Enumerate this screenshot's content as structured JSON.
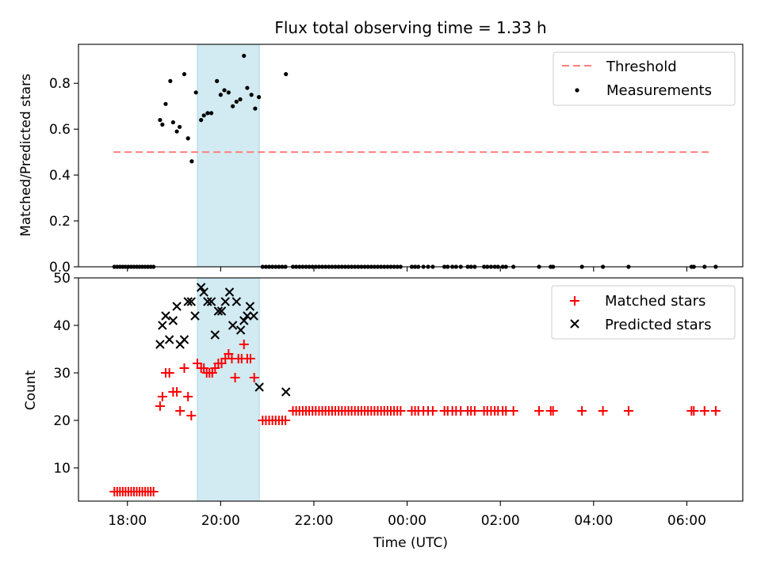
{
  "chart_data": [
    {
      "type": "scatter",
      "title": "Flux total observing time = 1.33 h",
      "ylabel": "Matched/Predicted stars",
      "xlabel": "",
      "xlim": [
        16.95,
        31.2
      ],
      "ylim": [
        0,
        0.97
      ],
      "yticks": [
        0.0,
        0.2,
        0.4,
        0.6,
        0.8
      ],
      "ytick_labels": [
        "0.0",
        "0.2",
        "0.4",
        "0.6",
        "0.8"
      ],
      "legend_position": "top-right",
      "shaded_region": {
        "x": [
          19.5,
          20.83
        ],
        "color": "#add8e6"
      },
      "threshold": {
        "name": "Threshold",
        "y": 0.5,
        "x": [
          17.7,
          30.55
        ],
        "color": "#ff7f7f"
      },
      "series": [
        {
          "name": "Measurements",
          "color": "#000000",
          "points": [
            [
              17.72,
              0
            ],
            [
              17.78,
              0
            ],
            [
              17.84,
              0
            ],
            [
              17.9,
              0
            ],
            [
              17.96,
              0
            ],
            [
              18.02,
              0
            ],
            [
              18.08,
              0
            ],
            [
              18.14,
              0
            ],
            [
              18.2,
              0
            ],
            [
              18.26,
              0
            ],
            [
              18.32,
              0
            ],
            [
              18.38,
              0
            ],
            [
              18.44,
              0
            ],
            [
              18.5,
              0
            ],
            [
              18.56,
              0
            ],
            [
              18.7,
              0.64
            ],
            [
              18.75,
              0.62
            ],
            [
              18.82,
              0.71
            ],
            [
              18.92,
              0.81
            ],
            [
              18.98,
              0.63
            ],
            [
              19.06,
              0.59
            ],
            [
              19.12,
              0.61
            ],
            [
              19.22,
              0.84
            ],
            [
              19.3,
              0.56
            ],
            [
              19.38,
              0.46
            ],
            [
              19.47,
              0.76
            ],
            [
              19.58,
              0.64
            ],
            [
              19.64,
              0.66
            ],
            [
              19.72,
              0.67
            ],
            [
              19.8,
              0.67
            ],
            [
              19.92,
              0.81
            ],
            [
              20.0,
              0.75
            ],
            [
              20.08,
              0.77
            ],
            [
              20.17,
              0.76
            ],
            [
              20.26,
              0.7
            ],
            [
              20.34,
              0.72
            ],
            [
              20.42,
              0.73
            ],
            [
              20.5,
              0.92
            ],
            [
              20.57,
              0.78
            ],
            [
              20.66,
              0.75
            ],
            [
              20.74,
              0.69
            ],
            [
              20.82,
              0.74
            ],
            [
              21.4,
              0.84
            ],
            [
              20.9,
              0
            ],
            [
              20.97,
              0
            ],
            [
              21.04,
              0
            ],
            [
              21.11,
              0
            ],
            [
              21.18,
              0
            ],
            [
              21.25,
              0
            ],
            [
              21.32,
              0
            ],
            [
              21.39,
              0
            ],
            [
              21.55,
              0
            ],
            [
              21.62,
              0
            ],
            [
              21.69,
              0
            ],
            [
              21.76,
              0
            ],
            [
              21.83,
              0
            ],
            [
              21.9,
              0
            ],
            [
              21.97,
              0
            ],
            [
              22.04,
              0
            ],
            [
              22.11,
              0
            ],
            [
              22.18,
              0
            ],
            [
              22.25,
              0
            ],
            [
              22.32,
              0
            ],
            [
              22.39,
              0
            ],
            [
              22.46,
              0
            ],
            [
              22.53,
              0
            ],
            [
              22.6,
              0
            ],
            [
              22.67,
              0
            ],
            [
              22.74,
              0
            ],
            [
              22.81,
              0
            ],
            [
              22.88,
              0
            ],
            [
              22.95,
              0
            ],
            [
              23.02,
              0
            ],
            [
              23.09,
              0
            ],
            [
              23.16,
              0
            ],
            [
              23.23,
              0
            ],
            [
              23.3,
              0
            ],
            [
              23.37,
              0
            ],
            [
              23.44,
              0
            ],
            [
              23.51,
              0
            ],
            [
              23.58,
              0
            ],
            [
              23.65,
              0
            ],
            [
              23.72,
              0
            ],
            [
              23.79,
              0
            ],
            [
              23.86,
              0
            ],
            [
              24.1,
              0
            ],
            [
              24.17,
              0
            ],
            [
              24.24,
              0
            ],
            [
              24.35,
              0
            ],
            [
              24.45,
              0
            ],
            [
              24.55,
              0
            ],
            [
              24.8,
              0
            ],
            [
              24.87,
              0
            ],
            [
              24.97,
              0
            ],
            [
              25.05,
              0
            ],
            [
              25.15,
              0
            ],
            [
              25.3,
              0
            ],
            [
              25.37,
              0
            ],
            [
              25.45,
              0
            ],
            [
              25.65,
              0
            ],
            [
              25.72,
              0
            ],
            [
              25.8,
              0
            ],
            [
              25.88,
              0
            ],
            [
              25.95,
              0
            ],
            [
              26.05,
              0
            ],
            [
              26.12,
              0
            ],
            [
              26.28,
              0
            ],
            [
              26.83,
              0
            ],
            [
              27.08,
              0
            ],
            [
              27.13,
              0
            ],
            [
              27.75,
              0
            ],
            [
              28.2,
              0
            ],
            [
              28.75,
              0
            ],
            [
              30.1,
              0
            ],
            [
              30.15,
              0
            ],
            [
              30.38,
              0
            ],
            [
              30.62,
              0
            ]
          ]
        }
      ]
    },
    {
      "type": "scatter",
      "title": "",
      "ylabel": "Count",
      "xlabel": "Time (UTC)",
      "xlim": [
        16.95,
        31.2
      ],
      "ylim": [
        3,
        50
      ],
      "yticks": [
        10,
        20,
        30,
        40,
        50
      ],
      "ytick_labels": [
        "10",
        "20",
        "30",
        "40",
        "50"
      ],
      "xticks": [
        18,
        20,
        22,
        24,
        26,
        28,
        30
      ],
      "xtick_labels": [
        "18:00",
        "20:00",
        "22:00",
        "00:00",
        "02:00",
        "04:00",
        "06:00"
      ],
      "legend_position": "top-right",
      "shaded_region": {
        "x": [
          19.5,
          20.83
        ],
        "color": "#add8e6"
      },
      "series": [
        {
          "name": "Matched stars",
          "marker": "plus",
          "color": "#ff0000",
          "points": [
            [
              17.72,
              5
            ],
            [
              17.78,
              5
            ],
            [
              17.84,
              5
            ],
            [
              17.9,
              5
            ],
            [
              17.96,
              5
            ],
            [
              18.02,
              5
            ],
            [
              18.08,
              5
            ],
            [
              18.14,
              5
            ],
            [
              18.2,
              5
            ],
            [
              18.26,
              5
            ],
            [
              18.32,
              5
            ],
            [
              18.38,
              5
            ],
            [
              18.44,
              5
            ],
            [
              18.5,
              5
            ],
            [
              18.56,
              5
            ],
            [
              18.7,
              23
            ],
            [
              18.75,
              25
            ],
            [
              18.82,
              30
            ],
            [
              18.9,
              30
            ],
            [
              18.98,
              26
            ],
            [
              19.06,
              26
            ],
            [
              19.13,
              22
            ],
            [
              19.22,
              31
            ],
            [
              19.3,
              25
            ],
            [
              19.37,
              21
            ],
            [
              19.5,
              32
            ],
            [
              19.58,
              31
            ],
            [
              19.64,
              31
            ],
            [
              19.7,
              30
            ],
            [
              19.76,
              30
            ],
            [
              19.82,
              30
            ],
            [
              19.88,
              31
            ],
            [
              19.95,
              32
            ],
            [
              20.02,
              32
            ],
            [
              20.1,
              33
            ],
            [
              20.17,
              34
            ],
            [
              20.24,
              33
            ],
            [
              20.31,
              29
            ],
            [
              20.38,
              33
            ],
            [
              20.45,
              33
            ],
            [
              20.5,
              36
            ],
            [
              20.57,
              33
            ],
            [
              20.64,
              33
            ],
            [
              20.72,
              29
            ],
            [
              20.9,
              20
            ],
            [
              20.97,
              20
            ],
            [
              21.04,
              20
            ],
            [
              21.11,
              20
            ],
            [
              21.18,
              20
            ],
            [
              21.25,
              20
            ],
            [
              21.32,
              20
            ],
            [
              21.39,
              20
            ],
            [
              21.55,
              22
            ],
            [
              21.62,
              22
            ],
            [
              21.69,
              22
            ],
            [
              21.76,
              22
            ],
            [
              21.83,
              22
            ],
            [
              21.9,
              22
            ],
            [
              21.97,
              22
            ],
            [
              22.04,
              22
            ],
            [
              22.11,
              22
            ],
            [
              22.18,
              22
            ],
            [
              22.25,
              22
            ],
            [
              22.32,
              22
            ],
            [
              22.39,
              22
            ],
            [
              22.46,
              22
            ],
            [
              22.53,
              22
            ],
            [
              22.6,
              22
            ],
            [
              22.67,
              22
            ],
            [
              22.74,
              22
            ],
            [
              22.81,
              22
            ],
            [
              22.88,
              22
            ],
            [
              22.95,
              22
            ],
            [
              23.02,
              22
            ],
            [
              23.09,
              22
            ],
            [
              23.16,
              22
            ],
            [
              23.23,
              22
            ],
            [
              23.3,
              22
            ],
            [
              23.37,
              22
            ],
            [
              23.44,
              22
            ],
            [
              23.51,
              22
            ],
            [
              23.58,
              22
            ],
            [
              23.65,
              22
            ],
            [
              23.72,
              22
            ],
            [
              23.79,
              22
            ],
            [
              23.86,
              22
            ],
            [
              24.1,
              22
            ],
            [
              24.17,
              22
            ],
            [
              24.24,
              22
            ],
            [
              24.35,
              22
            ],
            [
              24.45,
              22
            ],
            [
              24.55,
              22
            ],
            [
              24.8,
              22
            ],
            [
              24.87,
              22
            ],
            [
              24.97,
              22
            ],
            [
              25.05,
              22
            ],
            [
              25.15,
              22
            ],
            [
              25.3,
              22
            ],
            [
              25.37,
              22
            ],
            [
              25.45,
              22
            ],
            [
              25.65,
              22
            ],
            [
              25.72,
              22
            ],
            [
              25.8,
              22
            ],
            [
              25.88,
              22
            ],
            [
              25.95,
              22
            ],
            [
              26.05,
              22
            ],
            [
              26.12,
              22
            ],
            [
              26.28,
              22
            ],
            [
              26.83,
              22
            ],
            [
              27.08,
              22
            ],
            [
              27.13,
              22
            ],
            [
              27.75,
              22
            ],
            [
              28.2,
              22
            ],
            [
              28.75,
              22
            ],
            [
              30.1,
              22
            ],
            [
              30.15,
              22
            ],
            [
              30.38,
              22
            ],
            [
              30.62,
              22
            ]
          ]
        },
        {
          "name": "Predicted stars",
          "marker": "x",
          "color": "#000000",
          "points": [
            [
              18.7,
              36
            ],
            [
              18.75,
              40
            ],
            [
              18.82,
              42
            ],
            [
              18.9,
              37
            ],
            [
              18.98,
              41
            ],
            [
              19.06,
              44
            ],
            [
              19.13,
              36
            ],
            [
              19.22,
              37
            ],
            [
              19.3,
              45
            ],
            [
              19.37,
              45
            ],
            [
              19.45,
              42
            ],
            [
              19.58,
              48
            ],
            [
              19.64,
              47
            ],
            [
              19.72,
              45
            ],
            [
              19.8,
              45
            ],
            [
              19.88,
              38
            ],
            [
              19.95,
              43
            ],
            [
              20.02,
              43
            ],
            [
              20.1,
              45
            ],
            [
              20.19,
              47
            ],
            [
              20.26,
              40
            ],
            [
              20.34,
              45
            ],
            [
              20.43,
              39
            ],
            [
              20.5,
              41
            ],
            [
              20.57,
              42
            ],
            [
              20.63,
              44
            ],
            [
              20.71,
              42
            ],
            [
              20.83,
              27
            ],
            [
              21.4,
              26
            ]
          ]
        }
      ]
    }
  ]
}
